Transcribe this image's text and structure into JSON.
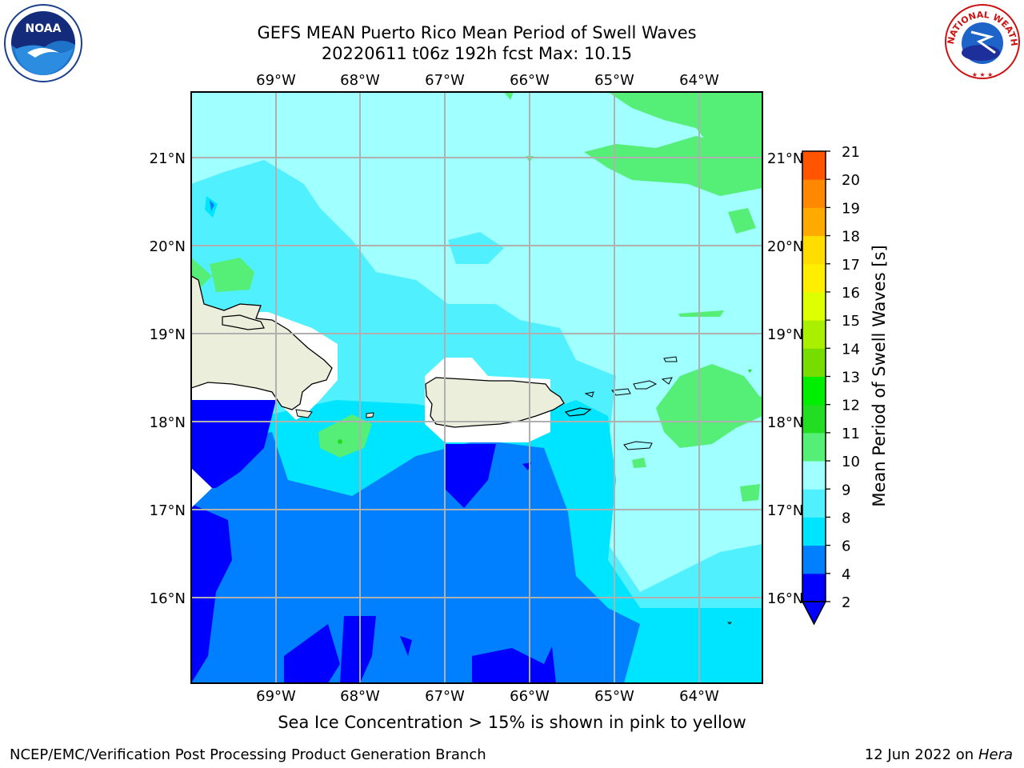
{
  "title": {
    "line1": "GEFS MEAN Puerto Rico Mean Period of Swell Waves",
    "line2": "20220611 t06z 192h fcst   Max: 10.15"
  },
  "map": {
    "lon_labels": [
      "69°W",
      "68°W",
      "67°W",
      "66°W",
      "65°W",
      "64°W"
    ],
    "lat_labels": [
      "21°N",
      "20°N",
      "19°N",
      "18°N",
      "17°N",
      "16°N"
    ]
  },
  "colorbar": {
    "label": "Mean Period of Swell Waves [s]",
    "ticks": [
      "2",
      "4",
      "6",
      "8",
      "9",
      "10",
      "11",
      "12",
      "13",
      "14",
      "15",
      "16",
      "17",
      "18",
      "19",
      "20",
      "21"
    ],
    "colors": [
      "#0000ff",
      "#0080ff",
      "#00e5ff",
      "#50f0ff",
      "#a0ffff",
      "#55ee77",
      "#22dd22",
      "#00ee00",
      "#77dd00",
      "#aaee00",
      "#ddff00",
      "#ffee00",
      "#ffdd00",
      "#ffaa00",
      "#ff8800",
      "#ff5500",
      "#ff2200",
      "#ff0000"
    ],
    "extend_color": "#0000ff"
  },
  "footer": {
    "caption": "Sea Ice Concentration > 15% is shown in pink to yellow",
    "credit": "NCEP/EMC/Verification Post Processing Product Generation Branch",
    "date": "12 Jun 2022 on",
    "host": "Hera"
  },
  "logos": {
    "left": "NOAA",
    "right": "NATIONAL WEATHER SERVICE"
  }
}
